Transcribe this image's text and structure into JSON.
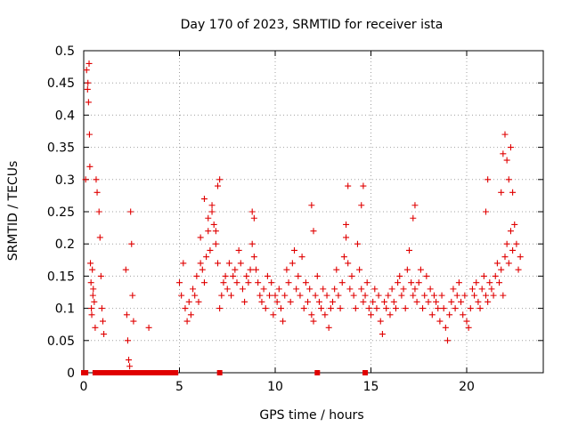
{
  "chart_data": {
    "type": "scatter",
    "title": "Day 170 of 2023, SRMTID for receiver ista",
    "xlabel": "GPS time / hours",
    "ylabel": "SRMTID / TECUs",
    "xlim": [
      0,
      24
    ],
    "ylim": [
      0,
      0.5
    ],
    "xticks": [
      0,
      5,
      10,
      15,
      20
    ],
    "xtick_labels": [
      "0",
      "5",
      "10",
      "15",
      "20"
    ],
    "yticks": [
      0,
      0.05,
      0.1,
      0.15,
      0.2,
      0.25,
      0.3,
      0.35,
      0.4,
      0.45,
      0.5
    ],
    "ytick_labels": [
      "0",
      "0.05",
      "0.1",
      "0.15",
      "0.2",
      "0.25",
      "0.3",
      "0.35",
      "0.4",
      "0.45",
      "0.5"
    ],
    "grid": true,
    "legend": "none",
    "marker": "plus",
    "color": "#e00000",
    "series": [
      {
        "points_x": [
          0.1,
          0.15,
          0.2,
          0.22,
          0.25,
          0.28,
          0.3,
          0.32,
          0.35,
          0.38,
          0.4,
          0.42,
          0.45,
          0.48,
          0.5,
          0.55,
          0.6,
          0.65,
          0.7,
          0.8,
          0.85,
          0.9,
          0.95,
          1.0,
          1.05,
          2.2,
          2.25,
          2.3,
          2.35,
          2.4,
          2.45,
          2.5,
          2.55,
          2.6,
          3.4,
          5.0,
          5.1,
          5.2,
          5.3,
          5.4,
          5.5,
          5.6,
          5.7,
          5.8,
          5.9,
          6.0,
          6.1,
          6.2,
          6.3,
          6.4,
          6.5,
          6.6,
          6.7,
          6.8,
          6.9,
          7.0,
          7.1,
          7.2,
          7.3,
          7.4,
          7.5,
          7.6,
          7.7,
          7.8,
          7.9,
          8.0,
          8.1,
          8.2,
          8.3,
          8.4,
          8.5,
          8.6,
          8.7,
          8.8,
          8.9,
          9.0,
          9.1,
          9.2,
          9.3,
          9.4,
          9.5,
          9.6,
          9.7,
          9.8,
          9.9,
          10.0,
          10.1,
          10.2,
          10.3,
          10.4,
          10.5,
          10.6,
          10.7,
          10.8,
          10.9,
          11.0,
          11.1,
          11.2,
          11.3,
          11.4,
          11.5,
          11.6,
          11.7,
          11.8,
          11.9,
          12.0,
          12.1,
          12.2,
          12.3,
          12.4,
          12.5,
          12.6,
          12.7,
          12.8,
          12.9,
          13.0,
          13.1,
          13.2,
          13.3,
          13.4,
          13.5,
          13.6,
          13.7,
          13.8,
          13.9,
          14.0,
          14.1,
          14.2,
          14.3,
          14.4,
          14.5,
          14.6,
          14.7,
          14.8,
          14.9,
          15.0,
          15.1,
          15.2,
          15.3,
          15.4,
          15.5,
          15.6,
          15.7,
          15.8,
          15.9,
          16.0,
          16.1,
          16.2,
          16.3,
          16.4,
          16.5,
          16.6,
          16.7,
          16.8,
          16.9,
          17.0,
          17.1,
          17.2,
          17.3,
          17.4,
          17.5,
          17.6,
          17.7,
          17.8,
          17.9,
          18.0,
          18.1,
          18.2,
          18.3,
          18.4,
          18.5,
          18.6,
          18.7,
          18.8,
          18.9,
          19.0,
          19.1,
          19.2,
          19.3,
          19.4,
          19.5,
          19.6,
          19.7,
          19.8,
          19.9,
          20.0,
          20.1,
          20.2,
          20.3,
          20.4,
          20.5,
          20.6,
          20.7,
          20.8,
          20.9,
          21.0,
          21.1,
          21.2,
          21.3,
          21.4,
          21.5,
          21.6,
          21.7,
          21.8,
          21.9,
          22.0,
          22.1,
          22.2,
          22.3,
          22.4,
          22.5,
          22.6,
          22.7,
          22.8,
          6.1,
          6.3,
          6.5,
          6.7,
          6.9,
          7.0,
          7.1,
          8.8,
          8.9,
          13.7,
          13.8,
          14.5,
          14.6,
          21.0,
          21.1,
          21.8,
          21.9,
          22.0,
          22.1,
          22.2,
          22.3,
          22.4,
          11.9,
          12.0,
          17.2,
          17.3
        ],
        "points_y": [
          0.3,
          0.47,
          0.44,
          0.45,
          0.42,
          0.48,
          0.37,
          0.32,
          0.17,
          0.14,
          0.1,
          0.09,
          0.16,
          0.12,
          0.13,
          0.11,
          0.07,
          0.3,
          0.28,
          0.25,
          0.21,
          0.15,
          0.1,
          0.08,
          0.06,
          0.16,
          0.09,
          0.05,
          0.02,
          0.01,
          0.25,
          0.2,
          0.12,
          0.08,
          0.07,
          0.14,
          0.12,
          0.17,
          0.1,
          0.08,
          0.11,
          0.09,
          0.13,
          0.12,
          0.15,
          0.11,
          0.17,
          0.16,
          0.14,
          0.18,
          0.22,
          0.19,
          0.25,
          0.23,
          0.2,
          0.17,
          0.1,
          0.12,
          0.14,
          0.15,
          0.13,
          0.17,
          0.12,
          0.15,
          0.16,
          0.14,
          0.19,
          0.17,
          0.13,
          0.11,
          0.15,
          0.14,
          0.16,
          0.2,
          0.18,
          0.16,
          0.14,
          0.12,
          0.11,
          0.13,
          0.1,
          0.15,
          0.12,
          0.14,
          0.09,
          0.12,
          0.11,
          0.13,
          0.1,
          0.08,
          0.12,
          0.16,
          0.14,
          0.11,
          0.17,
          0.19,
          0.13,
          0.15,
          0.12,
          0.18,
          0.1,
          0.14,
          0.11,
          0.13,
          0.09,
          0.08,
          0.12,
          0.15,
          0.11,
          0.1,
          0.13,
          0.09,
          0.12,
          0.07,
          0.1,
          0.11,
          0.13,
          0.16,
          0.12,
          0.1,
          0.14,
          0.18,
          0.21,
          0.17,
          0.13,
          0.15,
          0.12,
          0.1,
          0.2,
          0.16,
          0.13,
          0.11,
          0.12,
          0.14,
          0.1,
          0.09,
          0.11,
          0.13,
          0.1,
          0.12,
          0.08,
          0.06,
          0.11,
          0.1,
          0.12,
          0.09,
          0.13,
          0.11,
          0.1,
          0.14,
          0.15,
          0.12,
          0.13,
          0.1,
          0.16,
          0.19,
          0.14,
          0.12,
          0.13,
          0.11,
          0.14,
          0.16,
          0.1,
          0.12,
          0.15,
          0.11,
          0.13,
          0.09,
          0.12,
          0.11,
          0.1,
          0.08,
          0.12,
          0.1,
          0.07,
          0.05,
          0.09,
          0.11,
          0.13,
          0.1,
          0.12,
          0.14,
          0.11,
          0.09,
          0.12,
          0.08,
          0.07,
          0.1,
          0.13,
          0.12,
          0.14,
          0.11,
          0.1,
          0.13,
          0.15,
          0.12,
          0.11,
          0.14,
          0.13,
          0.12,
          0.15,
          0.17,
          0.14,
          0.16,
          0.12,
          0.18,
          0.2,
          0.17,
          0.22,
          0.19,
          0.23,
          0.2,
          0.16,
          0.18,
          0.21,
          0.27,
          0.24,
          0.26,
          0.22,
          0.29,
          0.3,
          0.25,
          0.24,
          0.23,
          0.29,
          0.26,
          0.29,
          0.25,
          0.3,
          0.28,
          0.34,
          0.37,
          0.33,
          0.3,
          0.35,
          0.28,
          0.26,
          0.22,
          0.24,
          0.26,
          0.23
        ]
      }
    ],
    "zero_markers_x": [
      0.0,
      0.1,
      0.6,
      0.7,
      0.9,
      1.0,
      1.1,
      1.2,
      1.3,
      1.4,
      1.5,
      1.6,
      1.7,
      1.8,
      1.9,
      2.0,
      2.1,
      2.2,
      2.3,
      2.4,
      2.5,
      2.6,
      2.7,
      2.8,
      2.9,
      3.0,
      3.1,
      3.2,
      3.3,
      3.4,
      3.5,
      3.6,
      3.7,
      3.8,
      3.9,
      4.0,
      4.1,
      4.2,
      4.3,
      4.4,
      4.5,
      4.6,
      4.7,
      4.8,
      7.1,
      12.2,
      14.7
    ]
  }
}
